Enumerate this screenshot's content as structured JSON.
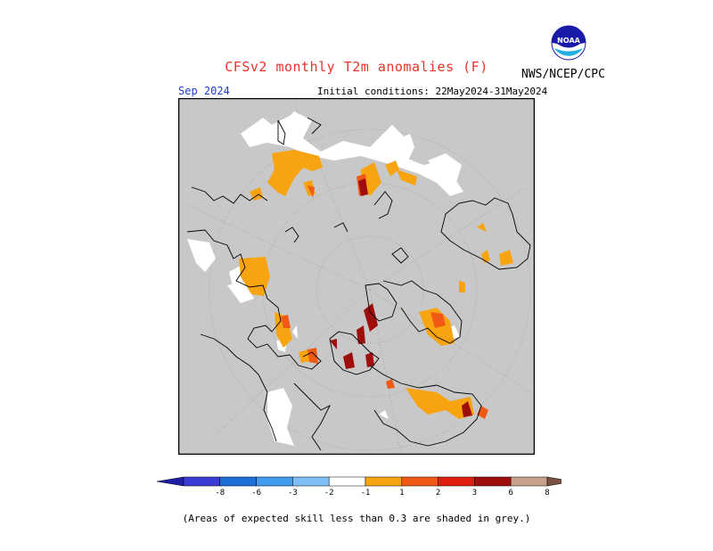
{
  "header": {
    "title": "CFSv2 monthly T2m anomalies (F)",
    "agency": "NWS/NCEP/CPC",
    "valid_month": "Sep 2024",
    "initial_conditions": "Initial conditions: 22May2024-31May2024"
  },
  "logo": {
    "text": "NOAA",
    "name": "noaa-logo"
  },
  "map": {
    "projection": "north-polar-stereographic",
    "background_color": "#c8c8c8",
    "land_outline_color": "#000000",
    "no_anomaly_color": "#ffffff"
  },
  "colorbar": {
    "labels": [
      "-8",
      "-6",
      "-3",
      "-2",
      "-1",
      "1",
      "2",
      "3",
      "6",
      "8"
    ],
    "colors": [
      "#1f1fa8",
      "#3b3bd6",
      "#1f6fd8",
      "#3d9bf0",
      "#7ec0f5",
      "#ffffff",
      "#f8a310",
      "#f05a14",
      "#e01e10",
      "#a00d0d",
      "#c8a08e",
      "#7a5040"
    ]
  },
  "footnote": "(Areas of expected skill less than 0.3 are shaded in grey.)"
}
